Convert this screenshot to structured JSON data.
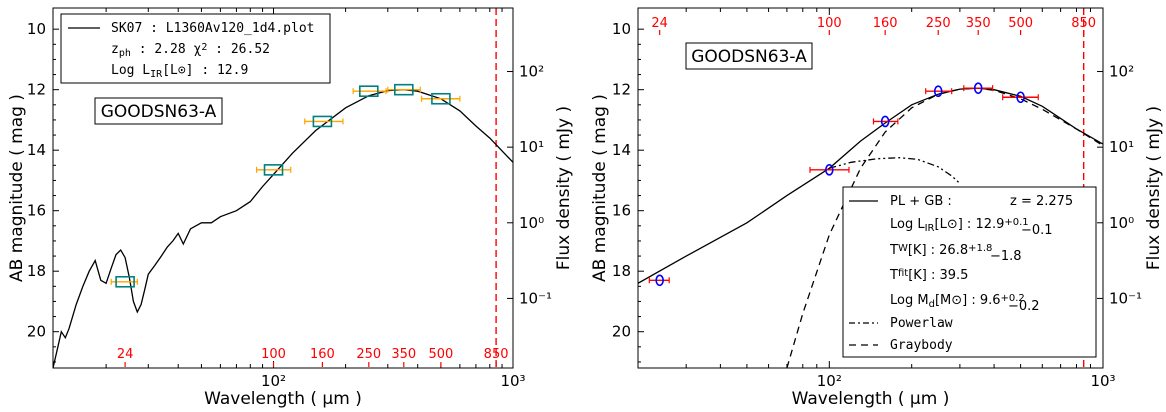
{
  "chart_data": [
    {
      "type": "line",
      "panel": "left",
      "object_label": "GOODSN63-A",
      "xlabel": "Wavelength ( μm )",
      "ylabel_left": "AB magnitude ( mag )",
      "ylabel_right": "Flux density ( mJy )",
      "xscale": "log",
      "xlim": [
        12,
        1000
      ],
      "ylim": [
        21.2,
        9.3
      ],
      "x_ticks": [
        {
          "value": 100,
          "label": "10²"
        },
        {
          "value": 1000,
          "label": "10³"
        }
      ],
      "y_ticks": [
        10,
        12,
        14,
        16,
        18,
        20
      ],
      "right_ticks": [
        {
          "mag": 18.9,
          "label": "10⁻¹"
        },
        {
          "mag": 16.4,
          "label": "10⁰"
        },
        {
          "mag": 13.9,
          "label": "10¹"
        },
        {
          "mag": 11.4,
          "label": "10²"
        }
      ],
      "band_labels": [
        {
          "x": 24,
          "label": "24"
        },
        {
          "x": 100,
          "label": "100"
        },
        {
          "x": 160,
          "label": "160"
        },
        {
          "x": 250,
          "label": "250"
        },
        {
          "x": 350,
          "label": "350"
        },
        {
          "x": 500,
          "label": "500"
        },
        {
          "x": 850,
          "label": "850"
        }
      ],
      "band_label_position": "bottom",
      "limit_line_x": 850,
      "legend": {
        "line_label": "SK07 : L1360Av120_1d4.plot",
        "z_label": "z",
        "z_sub": "ph",
        "z_value": ": 2.28",
        "chi_label": "χ",
        "chi_sup": "2",
        "chi_value": ": 26.52",
        "lir_label": "Log L",
        "lir_sub": "IR",
        "lir_unit": "[L⊙]",
        "lir_value": ": 12.9",
        "placement": "top-left"
      },
      "observed": [
        {
          "x": 24,
          "y": 18.35,
          "xerr": [
            21,
            27
          ]
        },
        {
          "x": 100,
          "y": 14.65,
          "xerr": [
            85,
            118
          ]
        },
        {
          "x": 160,
          "y": 13.05,
          "xerr": [
            135,
            195
          ]
        },
        {
          "x": 250,
          "y": 12.05,
          "xerr": [
            215,
            295
          ]
        },
        {
          "x": 350,
          "y": 12.0,
          "xerr": [
            300,
            410
          ]
        },
        {
          "x": 500,
          "y": 12.3,
          "xerr": [
            415,
            600
          ]
        }
      ],
      "model": {
        "name": "SK07 : L1360Av120_1d4.plot",
        "x": [
          12,
          12.5,
          13,
          13.5,
          14,
          15,
          16,
          17,
          18,
          19,
          20,
          21,
          22,
          23,
          24,
          25,
          26,
          27,
          28,
          29,
          30,
          32,
          34,
          36,
          38,
          40,
          42,
          45,
          50,
          55,
          60,
          70,
          80,
          90,
          100,
          120,
          150,
          200,
          250,
          300,
          350,
          400,
          500,
          600,
          700,
          800,
          1000
        ],
        "y": [
          21.2,
          20.6,
          20.0,
          20.2,
          19.9,
          19.1,
          18.5,
          18.0,
          17.65,
          18.3,
          18.4,
          17.9,
          17.45,
          17.3,
          17.55,
          18.2,
          19.0,
          19.35,
          19.1,
          18.6,
          18.1,
          17.8,
          17.5,
          17.2,
          17.0,
          16.75,
          17.1,
          16.6,
          16.4,
          16.4,
          16.2,
          16.0,
          15.7,
          15.2,
          14.8,
          14.1,
          13.35,
          12.6,
          12.2,
          12.03,
          12.0,
          12.05,
          12.3,
          12.7,
          13.2,
          13.6,
          14.4
        ]
      },
      "colors": {
        "model": "#000000",
        "marker": "#008080",
        "errorbar": "#ffa500",
        "band": "#ff0000"
      }
    },
    {
      "type": "line",
      "panel": "right",
      "object_label": "GOODSN63-A",
      "xlabel": "Wavelength ( μm )",
      "ylabel_left": "AB magnitude ( mag )",
      "ylabel_right": "Flux density ( mJy )",
      "xscale": "log",
      "xlim": [
        20,
        1000
      ],
      "ylim": [
        21.2,
        9.3
      ],
      "x_ticks": [
        {
          "value": 100,
          "label": "10²"
        },
        {
          "value": 1000,
          "label": "10³"
        }
      ],
      "y_ticks": [
        10,
        12,
        14,
        16,
        18,
        20
      ],
      "right_ticks": [
        {
          "mag": 18.9,
          "label": "10⁻¹"
        },
        {
          "mag": 16.4,
          "label": "10⁰"
        },
        {
          "mag": 13.9,
          "label": "10¹"
        },
        {
          "mag": 11.4,
          "label": "10²"
        }
      ],
      "band_labels": [
        {
          "x": 24,
          "label": "24"
        },
        {
          "x": 100,
          "label": "100"
        },
        {
          "x": 160,
          "label": "160"
        },
        {
          "x": 250,
          "label": "250"
        },
        {
          "x": 350,
          "label": "350"
        },
        {
          "x": 500,
          "label": "500"
        },
        {
          "x": 850,
          "label": "850"
        }
      ],
      "band_label_position": "top",
      "limit_line_x": 850,
      "legend": {
        "pl_gb": "PL + GB :",
        "z_text": "z = 2.275",
        "lir_label": "Log L",
        "lir_sub": "IR",
        "lir_unit": "[L⊙]",
        "lir_value": ": 12.9",
        "lir_err_up": "+0.1",
        "lir_err_down": "−0.1",
        "tdw_label": "T",
        "tdw_sub": "d",
        "tdw_sup": "W",
        "tdw_unit": "[K]",
        "tdw_value": ": 26.8",
        "tdw_err_up": "+1.8",
        "tdw_err_down": "−1.8",
        "tdfit_label": "T",
        "tdfit_sub": "d",
        "tdfit_sup": "fit",
        "tdfit_unit": "[K]",
        "tdfit_value": ": 39.5",
        "md_label": "Log M",
        "md_sub": "d",
        "md_unit": "[M⊙]",
        "md_value": ": 9.6",
        "md_err_up": "+0.2",
        "md_err_down": "−0.2",
        "powerlaw_label": "Powerlaw",
        "graybody_label": "Graybody",
        "placement": "lower-right"
      },
      "observed": [
        {
          "x": 24,
          "y": 18.3,
          "xerr": [
            22,
            26
          ]
        },
        {
          "x": 100,
          "y": 14.65,
          "xerr": [
            85,
            118
          ]
        },
        {
          "x": 160,
          "y": 13.05,
          "xerr": [
            145,
            178
          ]
        },
        {
          "x": 250,
          "y": 12.05,
          "xerr": [
            225,
            280
          ]
        },
        {
          "x": 350,
          "y": 11.95,
          "xerr": [
            310,
            395
          ]
        },
        {
          "x": 500,
          "y": 12.25,
          "xerr": [
            430,
            580
          ]
        }
      ],
      "total": {
        "x": [
          20,
          30,
          50,
          70,
          100,
          130,
          160,
          200,
          250,
          300,
          350,
          400,
          500,
          600,
          700,
          800,
          1000
        ],
        "y": [
          18.4,
          17.5,
          16.4,
          15.5,
          14.6,
          13.7,
          13.1,
          12.5,
          12.15,
          11.98,
          11.95,
          12.0,
          12.22,
          12.55,
          12.95,
          13.3,
          13.8
        ]
      },
      "powerlaw": {
        "x": [
          100,
          120,
          150,
          180,
          210,
          250,
          280,
          300
        ],
        "y": [
          14.6,
          14.4,
          14.28,
          14.25,
          14.3,
          14.55,
          14.85,
          15.1
        ]
      },
      "graybody": {
        "x": [
          70,
          80,
          100,
          130,
          160,
          200,
          250,
          300,
          350,
          400,
          500,
          600,
          800,
          1000
        ],
        "y": [
          21.2,
          19.4,
          16.8,
          14.6,
          13.4,
          12.6,
          12.15,
          11.98,
          11.95,
          12.02,
          12.3,
          12.65,
          13.3,
          13.85
        ]
      },
      "colors": {
        "model": "#000000",
        "marker": "#0000ff",
        "errorbar": "#ff0000",
        "band": "#ff0000"
      }
    }
  ]
}
